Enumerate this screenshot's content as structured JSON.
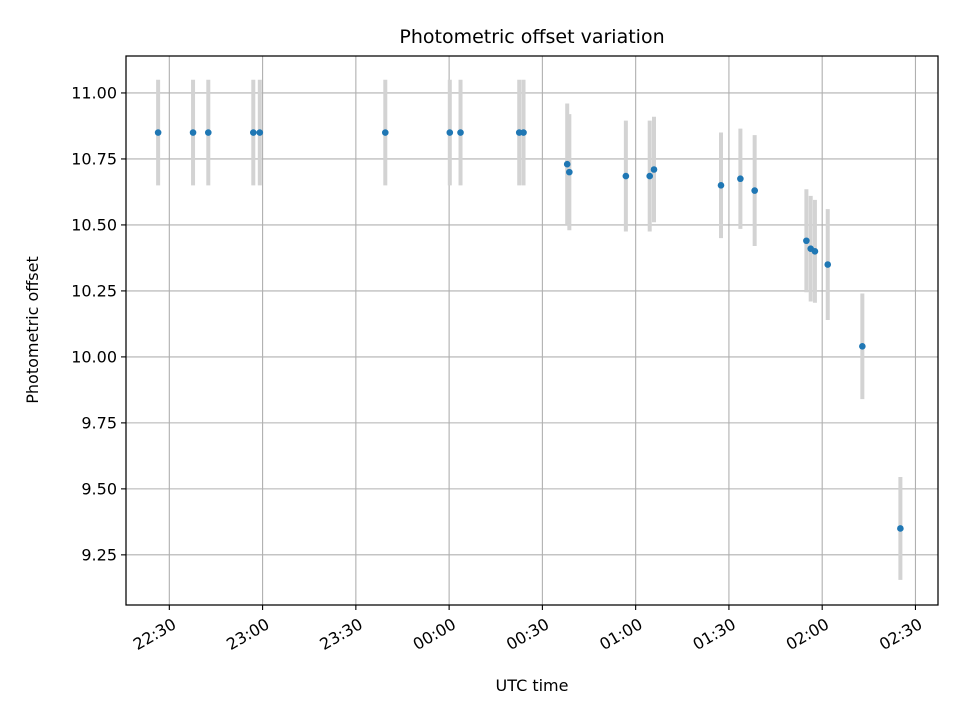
{
  "chart_data": {
    "type": "scatter",
    "title": "Photometric offset variation",
    "xlabel": "UTC time",
    "ylabel": "Photometric offset",
    "grid": true,
    "x_unit": "UTC time (HH:MM:SS)",
    "xlim": [
      "22:16:04",
      "02:37:15"
    ],
    "ylim": [
      9.06,
      11.14
    ],
    "x_ticks": [
      "22:30",
      "23:00",
      "23:30",
      "00:00",
      "00:30",
      "01:00",
      "01:30",
      "02:00",
      "02:30"
    ],
    "y_ticks": [
      "9.25",
      "9.50",
      "9.75",
      "10.00",
      "10.25",
      "10.50",
      "10.75",
      "11.00"
    ],
    "y_tick_values": [
      9.25,
      9.5,
      9.75,
      10.0,
      10.25,
      10.5,
      10.75,
      11.0
    ],
    "marker_color": "#1f77b4",
    "errorbar_color": "#d3d3d3",
    "points": [
      {
        "x": "22:26:24",
        "y": 10.85,
        "yerr": 0.2
      },
      {
        "x": "22:37:38",
        "y": 10.85,
        "yerr": 0.2
      },
      {
        "x": "22:42:32",
        "y": 10.85,
        "yerr": 0.2
      },
      {
        "x": "22:57:01",
        "y": 10.85,
        "yerr": 0.2
      },
      {
        "x": "22:59:06",
        "y": 10.85,
        "yerr": 0.2
      },
      {
        "x": "23:39:28",
        "y": 10.85,
        "yerr": 0.2
      },
      {
        "x": "00:00:13",
        "y": 10.85,
        "yerr": 0.2
      },
      {
        "x": "00:03:40",
        "y": 10.85,
        "yerr": 0.2
      },
      {
        "x": "00:22:33",
        "y": 10.85,
        "yerr": 0.2
      },
      {
        "x": "00:23:56",
        "y": 10.85,
        "yerr": 0.2
      },
      {
        "x": "00:37:59",
        "y": 10.73,
        "yerr": 0.23
      },
      {
        "x": "00:38:40",
        "y": 10.7,
        "yerr": 0.22
      },
      {
        "x": "00:56:51",
        "y": 10.685,
        "yerr": 0.21
      },
      {
        "x": "01:04:31",
        "y": 10.685,
        "yerr": 0.21
      },
      {
        "x": "01:05:54",
        "y": 10.71,
        "yerr": 0.2
      },
      {
        "x": "01:27:27",
        "y": 10.65,
        "yerr": 0.2
      },
      {
        "x": "01:33:41",
        "y": 10.675,
        "yerr": 0.19
      },
      {
        "x": "01:38:17",
        "y": 10.63,
        "yerr": 0.21
      },
      {
        "x": "01:54:55",
        "y": 10.44,
        "yerr": 0.195
      },
      {
        "x": "01:56:18",
        "y": 10.41,
        "yerr": 0.2
      },
      {
        "x": "01:57:40",
        "y": 10.4,
        "yerr": 0.195
      },
      {
        "x": "02:01:47",
        "y": 10.35,
        "yerr": 0.21
      },
      {
        "x": "02:12:55",
        "y": 10.04,
        "yerr": 0.2
      },
      {
        "x": "02:25:09",
        "y": 9.35,
        "yerr": 0.195
      }
    ]
  }
}
